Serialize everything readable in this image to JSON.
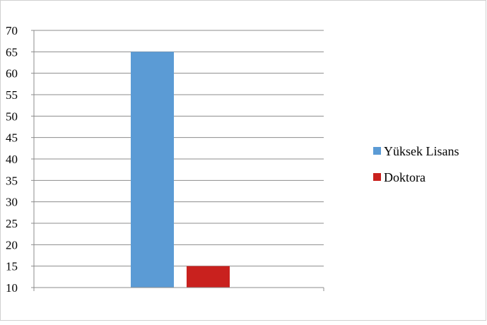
{
  "chart_data": {
    "type": "bar",
    "title": "",
    "xlabel": "",
    "ylabel": "",
    "ylim": [
      10,
      70
    ],
    "yticks": [
      10,
      15,
      20,
      25,
      30,
      35,
      40,
      45,
      50,
      55,
      60,
      65,
      70
    ],
    "grid": true,
    "legend_position": "right",
    "series": [
      {
        "name": "Yüksek Lisans",
        "value": 65,
        "color": "#5b9bd5"
      },
      {
        "name": "Doktora",
        "value": 15,
        "color": "#c9211e"
      }
    ]
  }
}
